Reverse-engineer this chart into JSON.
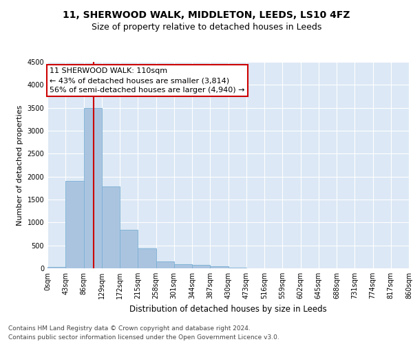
{
  "title": "11, SHERWOOD WALK, MIDDLETON, LEEDS, LS10 4FZ",
  "subtitle": "Size of property relative to detached houses in Leeds",
  "xlabel": "Distribution of detached houses by size in Leeds",
  "ylabel": "Number of detached properties",
  "bar_values": [
    30,
    1900,
    3500,
    1780,
    840,
    440,
    150,
    90,
    80,
    40,
    20,
    0,
    0,
    0,
    0,
    0,
    0,
    0,
    0,
    0
  ],
  "bin_edges": [
    0,
    43,
    86,
    129,
    172,
    215,
    258,
    301,
    344,
    387,
    430,
    473,
    516,
    559,
    602,
    645,
    688,
    731,
    774,
    817,
    860
  ],
  "tick_labels": [
    "0sqm",
    "43sqm",
    "86sqm",
    "129sqm",
    "172sqm",
    "215sqm",
    "258sqm",
    "301sqm",
    "344sqm",
    "387sqm",
    "430sqm",
    "473sqm",
    "516sqm",
    "559sqm",
    "602sqm",
    "645sqm",
    "688sqm",
    "731sqm",
    "774sqm",
    "817sqm",
    "860sqm"
  ],
  "bar_color": "#aac4e0",
  "bar_edge_color": "#7aafd4",
  "vline_x": 110,
  "vline_color": "#cc0000",
  "annotation_text": "11 SHERWOOD WALK: 110sqm\n← 43% of detached houses are smaller (3,814)\n56% of semi-detached houses are larger (4,940) →",
  "annotation_box_color": "#ffffff",
  "annotation_box_edge": "#cc0000",
  "ylim": [
    0,
    4500
  ],
  "yticks": [
    0,
    500,
    1000,
    1500,
    2000,
    2500,
    3000,
    3500,
    4000,
    4500
  ],
  "background_color": "#dce8f5",
  "footer_line1": "Contains HM Land Registry data © Crown copyright and database right 2024.",
  "footer_line2": "Contains public sector information licensed under the Open Government Licence v3.0.",
  "title_fontsize": 10,
  "subtitle_fontsize": 9,
  "xlabel_fontsize": 8.5,
  "ylabel_fontsize": 8,
  "tick_fontsize": 7,
  "annotation_fontsize": 8,
  "footer_fontsize": 6.5
}
